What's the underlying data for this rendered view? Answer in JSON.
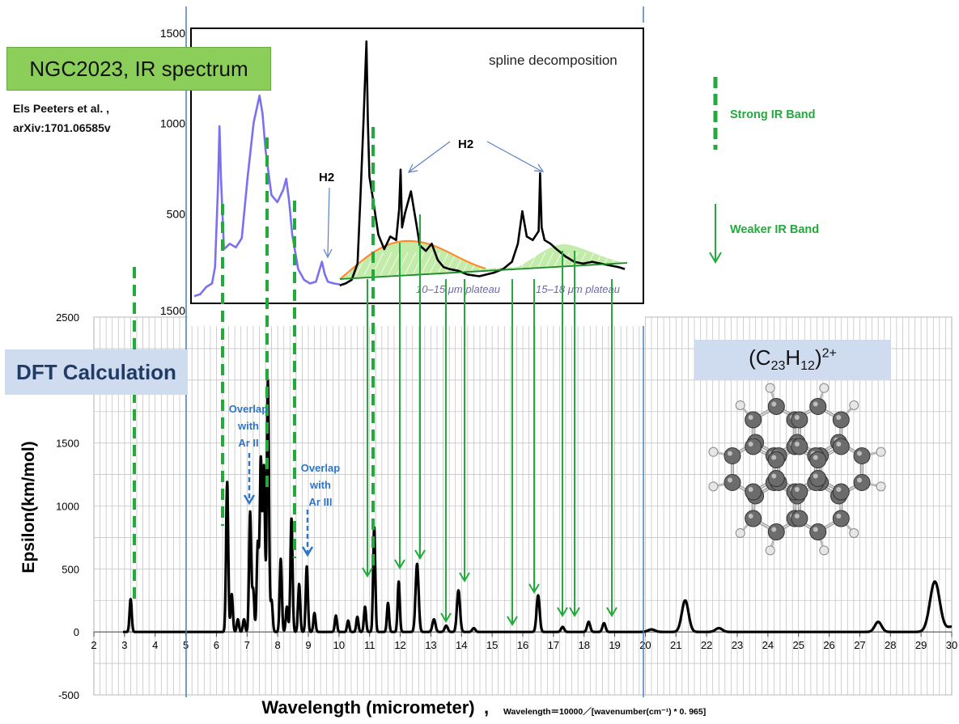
{
  "labels": {
    "ngc_title": "NGC2023,  IR spectrum",
    "citation_line1": "Els Peeters et al. ,",
    "citation_line2": "arXiv:1701.06585v",
    "spline": "spline decomposition",
    "h2_a": "H2",
    "h2_b": "H2",
    "plateau_1": "10–15 μm plateau",
    "plateau_2": "15–18 μm plateau",
    "legend_strong": "Strong IR Band",
    "legend_weak": "Weaker IR Band",
    "dft": "DFT Calculation",
    "formula_base1": "(C",
    "formula_sub1": "23",
    "formula_mid": "H",
    "formula_sub2": "12",
    "formula_end": ")",
    "formula_sup": "2+",
    "overlap_ar2_l1": "Overlap",
    "overlap_ar2_l2": "with",
    "overlap_ar2_l3": "Ar II",
    "overlap_ar3_l1": "Overlap",
    "overlap_ar3_l2": "with",
    "overlap_ar3_l3": "Ar III",
    "formula_note": "Wavelength＝10000／[wavenumber(cm⁻¹) * 0. 965]"
  },
  "colors": {
    "green_marker": "#22aa3c",
    "blue_marker": "#2e75c8",
    "obs_blue": "#7a70f2",
    "obs_black": "#000000",
    "fill_orange": "#ff8a2a",
    "fill_green": "#b9e79a"
  },
  "chart_data": [
    {
      "type": "line",
      "title": "",
      "annotation": "spline decomposition",
      "ylim": [
        0,
        1500
      ],
      "y_ticks": [
        500,
        1000,
        1500
      ],
      "y_tick_labels": [
        "500",
        "1000",
        "1500"
      ],
      "y_tick_labels_extra": [
        "1500"
      ],
      "series": [
        {
          "color": "#7a70f2",
          "x": [
            5.4,
            5.6,
            5.8,
            6.0,
            6.1,
            6.2,
            6.25,
            6.3,
            6.4,
            6.6,
            6.8,
            7.0,
            7.2,
            7.4,
            7.6,
            7.7,
            7.8,
            8.0,
            8.2,
            8.4,
            8.5,
            8.6,
            8.7,
            8.9,
            9.1,
            9.3,
            9.5,
            9.7,
            9.8,
            9.9,
            10.1,
            10.3
          ],
          "y": [
            40,
            50,
            90,
            110,
            200,
            650,
            980,
            700,
            300,
            330,
            310,
            360,
            700,
            1000,
            1150,
            1050,
            850,
            600,
            560,
            630,
            690,
            560,
            380,
            190,
            130,
            110,
            120,
            230,
            160,
            120,
            110,
            105
          ]
        },
        {
          "color": "#000000",
          "x": [
            10.3,
            10.5,
            10.7,
            10.9,
            11.0,
            11.1,
            11.2,
            11.25,
            11.3,
            11.4,
            11.6,
            11.8,
            12.0,
            12.2,
            12.3,
            12.35,
            12.4,
            12.5,
            12.7,
            12.8,
            12.9,
            13.0,
            13.2,
            13.4,
            13.6,
            13.8,
            14.0,
            14.3,
            14.6,
            15.0,
            15.5,
            15.8,
            16.1,
            16.3,
            16.45,
            16.6,
            16.8,
            17.0,
            17.05,
            17.1,
            17.2,
            17.4,
            17.6,
            17.9,
            18.2,
            18.5,
            18.8,
            19.1,
            19.4,
            19.7,
            19.9
          ],
          "y": [
            100,
            110,
            130,
            220,
            600,
            1000,
            1450,
            1000,
            700,
            600,
            380,
            300,
            370,
            350,
            520,
            740,
            420,
            500,
            620,
            520,
            420,
            320,
            290,
            330,
            240,
            200,
            190,
            180,
            160,
            150,
            170,
            190,
            230,
            330,
            510,
            370,
            350,
            400,
            720,
            420,
            350,
            330,
            300,
            260,
            230,
            220,
            230,
            220,
            210,
            200,
            190
          ]
        }
      ],
      "overlay_labels": [
        "H2",
        "H2",
        "10–15 μm plateau",
        "15–18 μm plateau"
      ]
    },
    {
      "type": "line",
      "title": "",
      "xlabel": "Wavelength (micrometer)",
      "ylabel": "Epsilon(km/mol)",
      "xlim": [
        2,
        30
      ],
      "ylim": [
        -500,
        2500
      ],
      "x_ticks": [
        2,
        3,
        4,
        5,
        6,
        7,
        8,
        9,
        10,
        11,
        12,
        13,
        14,
        15,
        16,
        17,
        18,
        19,
        20,
        21,
        22,
        23,
        24,
        25,
        26,
        27,
        28,
        29,
        30
      ],
      "y_ticks": [
        -500,
        0,
        500,
        1000,
        1500,
        2000,
        2500
      ],
      "grid": true,
      "peaks": [
        {
          "x": 3.2,
          "y": 260
        },
        {
          "x": 6.35,
          "y": 1190
        },
        {
          "x": 6.5,
          "y": 300
        },
        {
          "x": 6.7,
          "y": 100
        },
        {
          "x": 6.9,
          "y": 100
        },
        {
          "x": 7.1,
          "y": 950
        },
        {
          "x": 7.2,
          "y": 330
        },
        {
          "x": 7.35,
          "y": 700
        },
        {
          "x": 7.45,
          "y": 1360
        },
        {
          "x": 7.55,
          "y": 1300
        },
        {
          "x": 7.68,
          "y": 2000
        },
        {
          "x": 7.8,
          "y": 250
        },
        {
          "x": 8.1,
          "y": 580
        },
        {
          "x": 8.3,
          "y": 200
        },
        {
          "x": 8.45,
          "y": 900
        },
        {
          "x": 8.7,
          "y": 380
        },
        {
          "x": 8.95,
          "y": 520
        },
        {
          "x": 9.2,
          "y": 150
        },
        {
          "x": 9.9,
          "y": 130
        },
        {
          "x": 10.3,
          "y": 90
        },
        {
          "x": 10.6,
          "y": 120
        },
        {
          "x": 10.85,
          "y": 200
        },
        {
          "x": 11.15,
          "y": 830
        },
        {
          "x": 11.6,
          "y": 230
        },
        {
          "x": 11.95,
          "y": 400
        },
        {
          "x": 12.55,
          "y": 540
        },
        {
          "x": 13.1,
          "y": 100
        },
        {
          "x": 13.5,
          "y": 50
        },
        {
          "x": 13.9,
          "y": 330
        },
        {
          "x": 14.4,
          "y": 30
        },
        {
          "x": 16.5,
          "y": 290
        },
        {
          "x": 17.3,
          "y": 40
        },
        {
          "x": 18.15,
          "y": 80
        },
        {
          "x": 18.65,
          "y": 70
        },
        {
          "x": 20.2,
          "y": 20
        },
        {
          "x": 21.3,
          "y": 250
        },
        {
          "x": 22.4,
          "y": 30
        },
        {
          "x": 27.6,
          "y": 80
        },
        {
          "x": 29.45,
          "y": 400
        },
        {
          "x": 30,
          "y": 40
        }
      ],
      "strong_band_markers_um": [
        3.3,
        6.2,
        7.7,
        8.6,
        11.2
      ],
      "weak_band_arrows_um": [
        11.0,
        12.0,
        12.7,
        13.5,
        14.2,
        15.8,
        16.4,
        17.4,
        17.8,
        19.0
      ],
      "blue_arrows_um": [
        7.05,
        9.0
      ]
    }
  ]
}
